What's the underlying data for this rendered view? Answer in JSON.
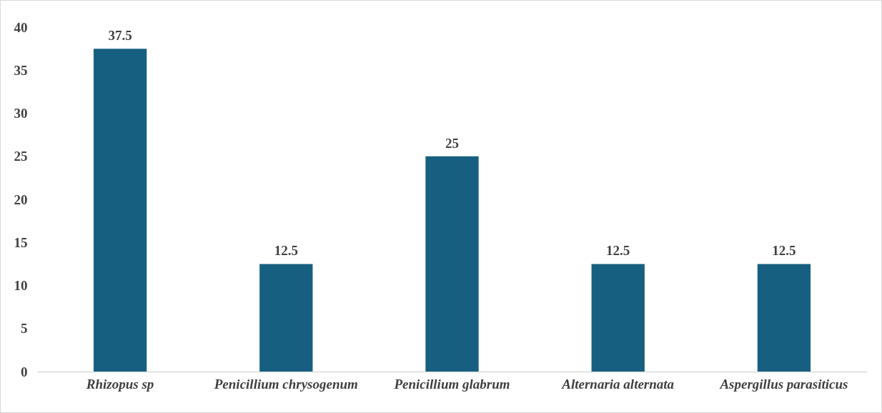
{
  "chart_data": {
    "type": "bar",
    "categories": [
      "Rhizopus sp",
      "Penicillium chrysogenum",
      "Penicillium glabrum",
      "Alternaria alternata",
      "Aspergillus parasiticus"
    ],
    "values": [
      37.5,
      12.5,
      25,
      12.5,
      12.5
    ],
    "color": "#175f80",
    "ylim": [
      0,
      40
    ],
    "yticks": [
      0,
      5,
      10,
      15,
      20,
      25,
      30,
      35,
      40
    ],
    "grid": false,
    "data_labels": true
  }
}
